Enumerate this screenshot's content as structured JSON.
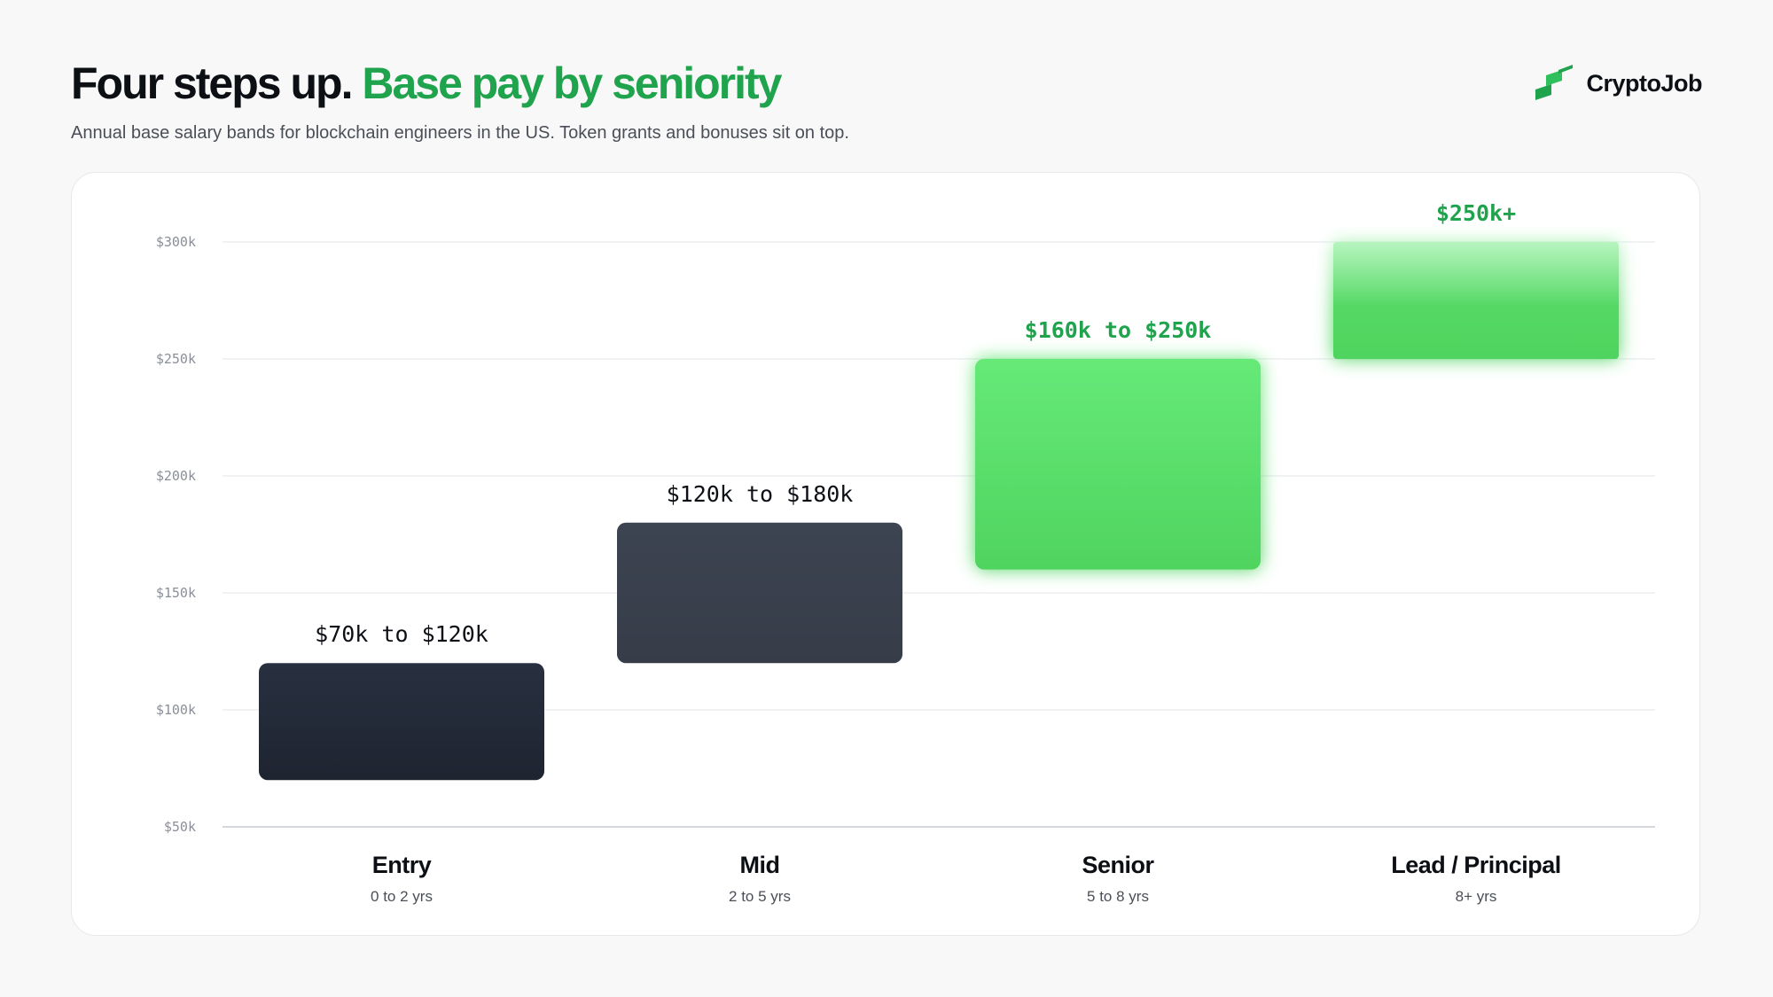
{
  "header": {
    "title_lead": "Four steps up.",
    "title_accent": "Base pay by seniority",
    "subtitle": "Annual base salary bands for blockchain engineers in the US. Token grants and bonuses sit on top."
  },
  "brand": {
    "name": "CryptoJob",
    "icon": "stairs-logo-icon"
  },
  "colors": {
    "accent": "#1fa34d",
    "entry": "#222834",
    "mid": "#3a414e",
    "senior": "#5bdc6c",
    "lead": "#52d55f"
  },
  "chart_data": {
    "type": "bar",
    "subtype": "floating-range",
    "title": "",
    "xlabel": "",
    "ylabel": "",
    "ylim": [
      50,
      300
    ],
    "y_ticks": [
      "$300k",
      "$250k",
      "$200k",
      "$150k",
      "$100k",
      "$50k"
    ],
    "y_tick_values": [
      300,
      250,
      200,
      150,
      100,
      50
    ],
    "grid": true,
    "categories": [
      {
        "name": "Entry",
        "sub": "0 to 2 yrs",
        "low": 70,
        "high": 120,
        "label": "$70k to $120k",
        "style": "dark"
      },
      {
        "name": "Mid",
        "sub": "2 to 5 yrs",
        "low": 120,
        "high": 180,
        "label": "$120k to $180k",
        "style": "slate"
      },
      {
        "name": "Senior",
        "sub": "5 to 8 yrs",
        "low": 160,
        "high": 250,
        "label": "$160k to $250k",
        "style": "green"
      },
      {
        "name": "Lead / Principal",
        "sub": "8+ yrs",
        "low": 250,
        "high": 300,
        "label": "$250k+",
        "style": "green-fade"
      }
    ]
  }
}
